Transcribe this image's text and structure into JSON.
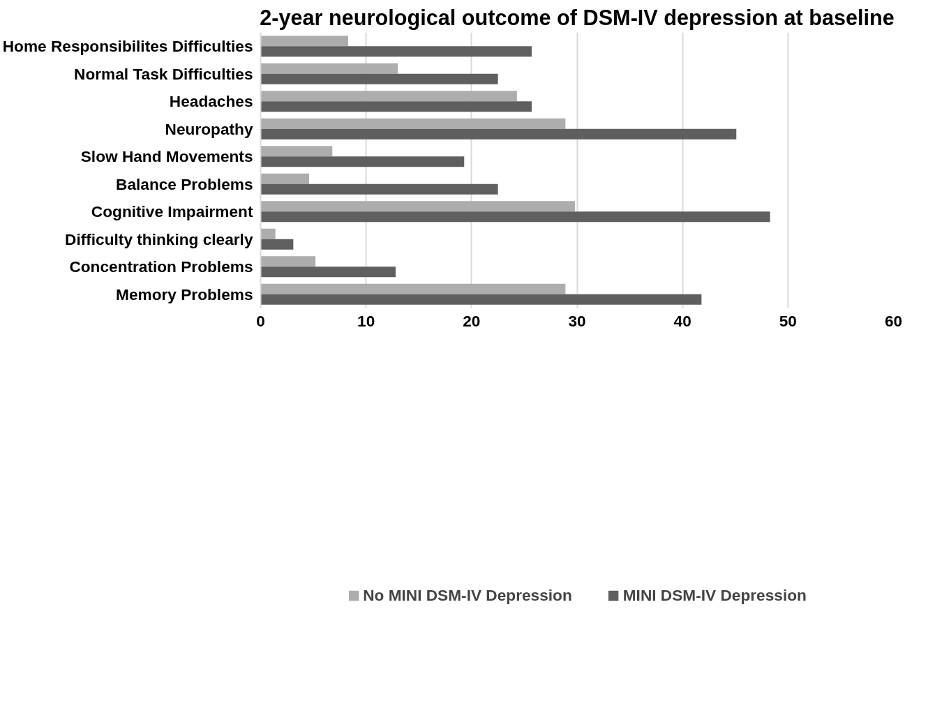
{
  "chart_data": {
    "type": "bar",
    "orientation": "horizontal",
    "title": "2-year neurological outcome of DSM-IV depression at baseline",
    "categories": [
      "Home Responsibilites Difficulties",
      "Normal Task Difficulties",
      "Headaches",
      "Neuropathy",
      "Slow Hand Movements",
      "Balance Problems",
      "Cognitive Impairment",
      "Difficulty thinking clearly",
      "Concentration Problems",
      "Memory Problems"
    ],
    "series": [
      {
        "name": "No MINI DSM-IV Depression",
        "color": "#adadad",
        "values": [
          8.3,
          13.0,
          24.3,
          28.9,
          6.8,
          4.6,
          29.8,
          1.4,
          5.2,
          28.9
        ]
      },
      {
        "name": "MINI DSM-IV Depression",
        "color": "#5f5f5f",
        "values": [
          25.7,
          22.5,
          25.7,
          45.1,
          19.3,
          22.5,
          48.3,
          3.1,
          12.8,
          41.8
        ]
      }
    ],
    "xlim": [
      0,
      60
    ],
    "xticks": [
      0,
      10,
      20,
      30,
      40,
      50,
      60
    ],
    "grid": "x",
    "legend": "bottom"
  }
}
